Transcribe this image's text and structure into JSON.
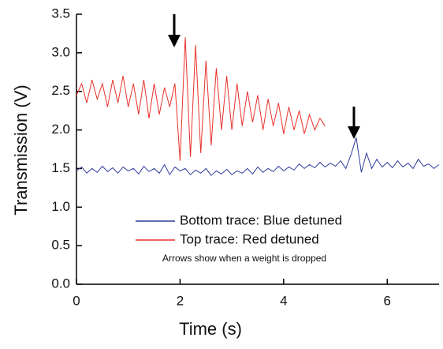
{
  "chart_data": {
    "type": "line",
    "xlabel": "Time (s)",
    "ylabel": "Transmission (V)",
    "xlim": [
      0,
      7
    ],
    "ylim": [
      0,
      3.5
    ],
    "xticks": [
      0,
      2,
      4,
      6
    ],
    "yticks": [
      {
        "value": 0,
        "label": "0.0"
      },
      {
        "value": 0.5,
        "label": "0.5"
      },
      {
        "value": 1,
        "label": "1.0"
      },
      {
        "value": 1.5,
        "label": "1.5"
      },
      {
        "value": 2,
        "label": "2.0"
      },
      {
        "value": 2.5,
        "label": "2.5"
      },
      {
        "value": 3,
        "label": "3.0"
      },
      {
        "value": 3.5,
        "label": "3.5"
      }
    ],
    "annotation": "Arrows show when a weight is dropped",
    "series": [
      {
        "name": "Bottom trace: Blue detuned",
        "color": "#2f3b9c",
        "x": [
          0,
          0.1,
          0.2,
          0.3,
          0.4,
          0.5,
          0.6,
          0.7,
          0.8,
          0.9,
          1,
          1.1,
          1.2,
          1.3,
          1.4,
          1.5,
          1.6,
          1.7,
          1.8,
          1.9,
          2,
          2.1,
          2.2,
          2.3,
          2.4,
          2.5,
          2.6,
          2.7,
          2.8,
          2.9,
          3,
          3.1,
          3.2,
          3.3,
          3.4,
          3.5,
          3.6,
          3.7,
          3.8,
          3.9,
          4,
          4.1,
          4.2,
          4.3,
          4.4,
          4.5,
          4.6,
          4.7,
          4.8,
          4.9,
          5,
          5.1,
          5.2,
          5.3,
          5.4,
          5.5,
          5.6,
          5.7,
          5.8,
          5.9,
          6,
          6.1,
          6.2,
          6.3,
          6.4,
          6.5,
          6.6,
          6.7,
          6.8,
          6.9,
          7
        ],
        "values": [
          1.47,
          1.52,
          1.44,
          1.5,
          1.45,
          1.53,
          1.46,
          1.51,
          1.44,
          1.52,
          1.47,
          1.5,
          1.43,
          1.53,
          1.46,
          1.5,
          1.44,
          1.55,
          1.42,
          1.52,
          1.47,
          1.5,
          1.42,
          1.48,
          1.44,
          1.5,
          1.41,
          1.47,
          1.43,
          1.49,
          1.42,
          1.47,
          1.44,
          1.5,
          1.43,
          1.52,
          1.45,
          1.5,
          1.46,
          1.53,
          1.47,
          1.52,
          1.48,
          1.56,
          1.5,
          1.55,
          1.51,
          1.58,
          1.52,
          1.57,
          1.53,
          1.6,
          1.5,
          1.68,
          1.9,
          1.45,
          1.7,
          1.5,
          1.62,
          1.52,
          1.58,
          1.51,
          1.6,
          1.52,
          1.57,
          1.5,
          1.62,
          1.53,
          1.56,
          1.5,
          1.55
        ]
      },
      {
        "name": "Top trace: Red detuned",
        "color": "#e8302a",
        "x": [
          0,
          0.1,
          0.2,
          0.3,
          0.4,
          0.5,
          0.6,
          0.7,
          0.8,
          0.9,
          1,
          1.1,
          1.2,
          1.3,
          1.4,
          1.5,
          1.6,
          1.7,
          1.8,
          1.9,
          2,
          2.1,
          2.2,
          2.3,
          2.4,
          2.5,
          2.6,
          2.7,
          2.8,
          2.9,
          3,
          3.1,
          3.2,
          3.3,
          3.4,
          3.5,
          3.6,
          3.7,
          3.8,
          3.9,
          4,
          4.1,
          4.2,
          4.3,
          4.4,
          4.5,
          4.6,
          4.7,
          4.8
        ],
        "values": [
          2.45,
          2.6,
          2.35,
          2.65,
          2.4,
          2.6,
          2.3,
          2.65,
          2.35,
          2.7,
          2.3,
          2.6,
          2.2,
          2.65,
          2.15,
          2.6,
          2.2,
          2.55,
          2.3,
          2.6,
          1.6,
          3.2,
          1.65,
          3.1,
          1.7,
          2.9,
          1.8,
          2.8,
          2,
          2.7,
          2,
          2.6,
          2.05,
          2.5,
          2.1,
          2.45,
          2,
          2.4,
          2.05,
          2.35,
          1.95,
          2.3,
          2,
          2.25,
          1.95,
          2.2,
          2,
          2.15,
          2.05
        ]
      }
    ]
  }
}
